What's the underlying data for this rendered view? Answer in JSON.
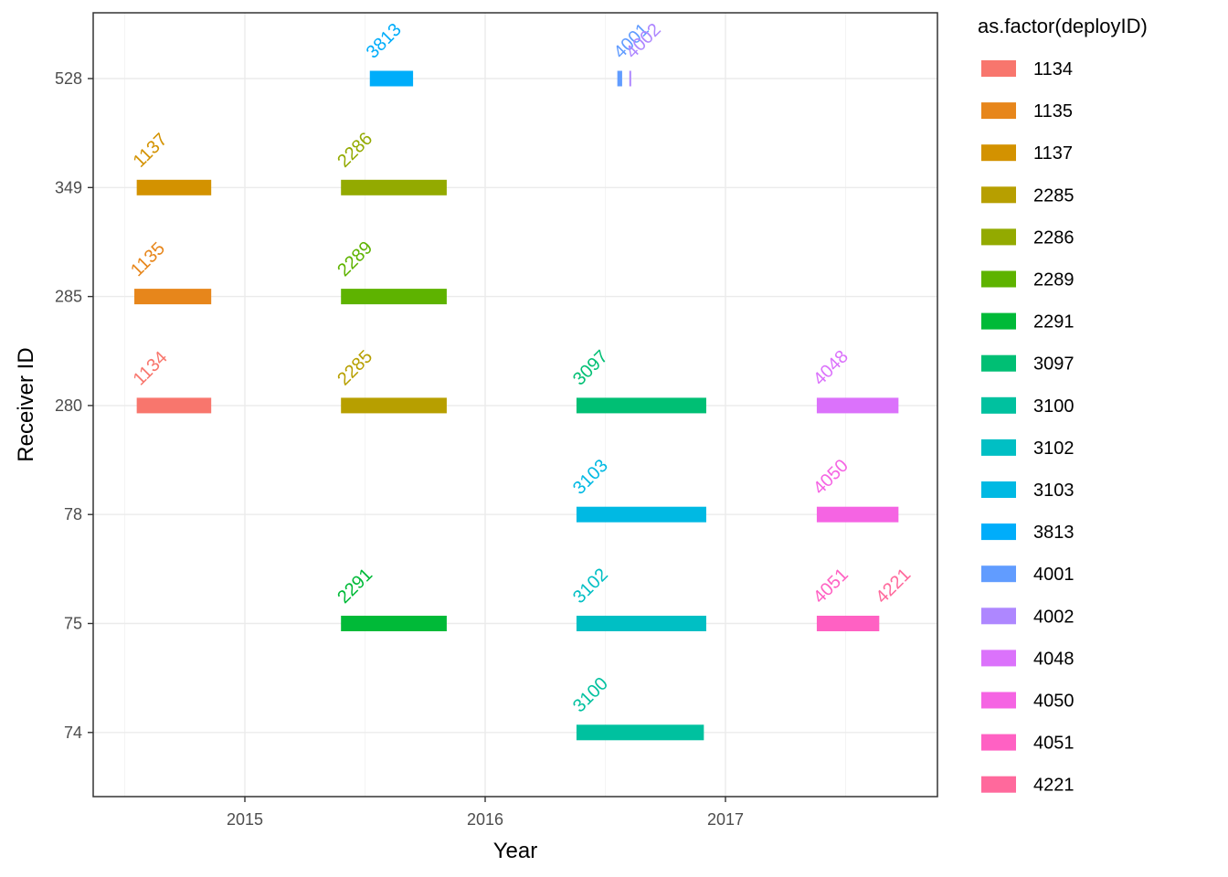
{
  "chart_data": {
    "type": "bar",
    "orientation": "horizontal-timeline",
    "title": "",
    "xlabel": "Year",
    "ylabel": "Receiver ID",
    "x_ticks": [
      "2015",
      "2016",
      "2017"
    ],
    "y_categories": [
      "74",
      "75",
      "78",
      "280",
      "285",
      "349",
      "528"
    ],
    "xlim": [
      2014.48,
      2017.88
    ],
    "grid": true,
    "legend_position": "right",
    "legend_title": "as.factor(deployID)",
    "series": [
      {
        "name": "1134",
        "receiver": "280",
        "start": 2014.55,
        "end": 2014.86,
        "color": "#F8766D"
      },
      {
        "name": "1135",
        "receiver": "285",
        "start": 2014.54,
        "end": 2014.86,
        "color": "#E7861B"
      },
      {
        "name": "1137",
        "receiver": "349",
        "start": 2014.55,
        "end": 2014.86,
        "color": "#D39200"
      },
      {
        "name": "2285",
        "receiver": "280",
        "start": 2015.4,
        "end": 2015.84,
        "color": "#B79F00"
      },
      {
        "name": "2286",
        "receiver": "349",
        "start": 2015.4,
        "end": 2015.84,
        "color": "#93AA00"
      },
      {
        "name": "2289",
        "receiver": "285",
        "start": 2015.4,
        "end": 2015.84,
        "color": "#5EB300"
      },
      {
        "name": "2291",
        "receiver": "75",
        "start": 2015.4,
        "end": 2015.84,
        "color": "#00BA38"
      },
      {
        "name": "3097",
        "receiver": "280",
        "start": 2016.38,
        "end": 2016.92,
        "color": "#00BF74"
      },
      {
        "name": "3100",
        "receiver": "74",
        "start": 2016.38,
        "end": 2016.91,
        "color": "#00C19F"
      },
      {
        "name": "3102",
        "receiver": "75",
        "start": 2016.38,
        "end": 2016.92,
        "color": "#00BFC4"
      },
      {
        "name": "3103",
        "receiver": "78",
        "start": 2016.38,
        "end": 2016.92,
        "color": "#00B9E3"
      },
      {
        "name": "3813",
        "receiver": "528",
        "start": 2015.52,
        "end": 2015.7,
        "color": "#00ADFA"
      },
      {
        "name": "4001",
        "receiver": "528",
        "start": 2016.55,
        "end": 2016.57,
        "color": "#619CFF"
      },
      {
        "name": "4002",
        "receiver": "528",
        "start": 2016.6,
        "end": 2016.605,
        "color": "#AE87FF"
      },
      {
        "name": "4048",
        "receiver": "280",
        "start": 2017.38,
        "end": 2017.72,
        "color": "#DB72FB"
      },
      {
        "name": "4050",
        "receiver": "78",
        "start": 2017.38,
        "end": 2017.72,
        "color": "#F564E3"
      },
      {
        "name": "4051",
        "receiver": "75",
        "start": 2017.38,
        "end": 2017.64,
        "color": "#FF61C3"
      },
      {
        "name": "4221",
        "receiver": "75",
        "start": 2017.64,
        "end": 2017.64,
        "color": "#FF699C"
      }
    ]
  }
}
